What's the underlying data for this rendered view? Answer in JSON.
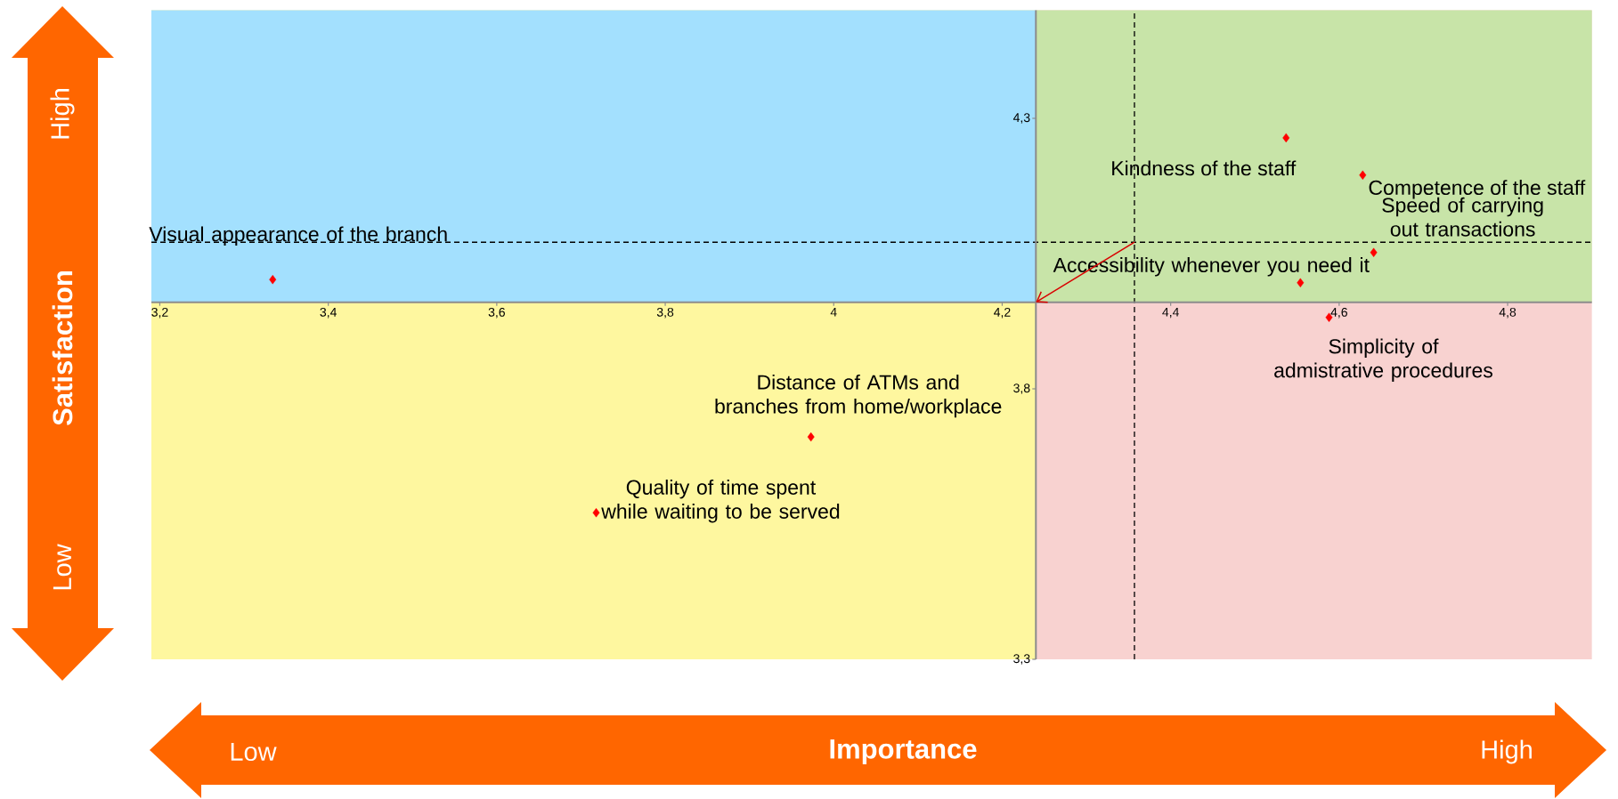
{
  "chart_data": {
    "type": "scatter",
    "xlabel": "Importance",
    "ylabel": "Satisfaction",
    "x": [
      3.334,
      3.973,
      3.718,
      4.537,
      4.628,
      4.641,
      4.554,
      4.588
    ],
    "values": [
      4.002,
      3.711,
      3.571,
      4.264,
      4.195,
      4.052,
      3.996,
      3.932
    ],
    "color": "#ff0000",
    "marker": "diamond",
    "xlim": [
      3.19,
      4.9
    ],
    "ylim": [
      3.3,
      4.5
    ],
    "xticks": [
      {
        "value": 3.2,
        "label": "3,2"
      },
      {
        "value": 3.4,
        "label": "3,4"
      },
      {
        "value": 3.6,
        "label": "3,6"
      },
      {
        "value": 3.8,
        "label": "3,8"
      },
      4,
      {
        "value": 4.2,
        "label": "4,2"
      },
      {
        "value": 4.4,
        "label": "4,4"
      },
      {
        "value": 4.6,
        "label": "4,6"
      },
      {
        "value": 4.8,
        "label": "4,8"
      }
    ],
    "yticks": [
      {
        "value": 3.3,
        "label": "3,3"
      },
      {
        "value": 3.8,
        "label": "3,8"
      },
      {
        "value": 4.3,
        "label": "4,3"
      }
    ],
    "ref_lines": [
      {
        "axis": "x",
        "value": 4.357,
        "color": "#000000",
        "line_style": "dashed"
      },
      {
        "axis": "y",
        "value": 4.071,
        "color": "#000000",
        "line_style": "dashed"
      }
    ],
    "bands": [
      {
        "axis": "x",
        "from": 3.19,
        "to": 4.24,
        "color": "#fef79f"
      },
      {
        "axis": "y",
        "from": 3.96,
        "to": 4.5,
        "color": "#a3e0fe"
      },
      {
        "axis": "x",
        "from": 4.24,
        "to": 4.9,
        "color": "#f8d2d0"
      },
      {
        "axis": "y",
        "from": 3.96,
        "to": 4.5,
        "color": "#c8e4a8"
      }
    ],
    "annotations": [
      {
        "text": "Visual appearance of the branch",
        "x": 3.334,
        "y": 4.002
      },
      {
        "text": "Distance of ATMs and branches from home/workplace",
        "x": 3.973,
        "y": 3.711
      },
      {
        "text": "Quality of time spent while waiting to be served",
        "x": 3.718,
        "y": 3.571
      },
      {
        "text": "Kindness of the staff",
        "x": 4.537,
        "y": 4.264
      },
      {
        "text": "Competence of the staff",
        "x": 4.628,
        "y": 4.195
      },
      {
        "text": "Speed of carrying out transactions",
        "x": 4.641,
        "y": 4.052
      },
      {
        "text": "Accessibility whenever you need it",
        "x": 4.554,
        "y": 3.996
      },
      {
        "text": "Simplicity of admistrative procedures",
        "x": 4.588,
        "y": 3.932
      },
      "High",
      "Low",
      "Low",
      "High"
    ]
  }
}
